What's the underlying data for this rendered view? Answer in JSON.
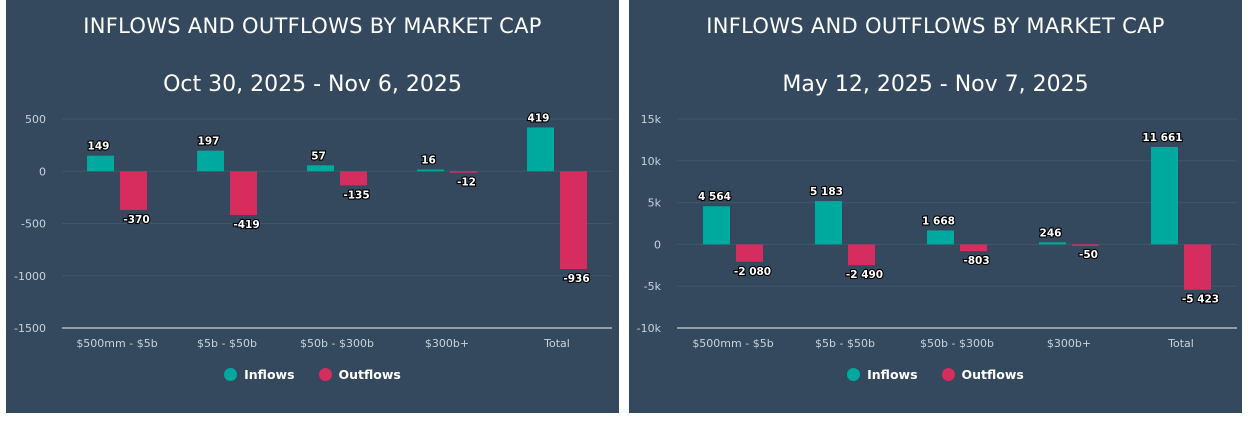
{
  "colors": {
    "inflows": "#00a99d",
    "outflows": "#d62c5e",
    "background": "#34495e"
  },
  "chart_data": [
    {
      "type": "bar",
      "title": "INFLOWS AND OUTFLOWS BY MARKET CAP",
      "subtitle": "Oct 30, 2025 - Nov 6, 2025",
      "categories": [
        "$500mm - $5b",
        "$5b - $50b",
        "$50b - $300b",
        "$300b+",
        "Total"
      ],
      "series": [
        {
          "name": "Inflows",
          "values": [
            149,
            197,
            57,
            16,
            419
          ],
          "labels": [
            "149",
            "197",
            "57",
            "16",
            "419"
          ]
        },
        {
          "name": "Outflows",
          "values": [
            -370,
            -419,
            -135,
            -12,
            -936
          ],
          "labels": [
            "-370",
            "-419",
            "-135",
            "-12",
            "-936"
          ]
        }
      ],
      "ylim": [
        -1500,
        500
      ],
      "yticks": [
        500,
        0,
        -500,
        -1000,
        -1500
      ],
      "ytick_labels": [
        "500",
        "0",
        "-500",
        "-1000",
        "-1500"
      ],
      "grid": true,
      "legend": "bottom"
    },
    {
      "type": "bar",
      "title": "INFLOWS AND OUTFLOWS BY MARKET CAP",
      "subtitle": "May 12, 2025 - Nov 7, 2025",
      "categories": [
        "$500mm - $5b",
        "$5b - $50b",
        "$50b - $300b",
        "$300b+",
        "Total"
      ],
      "series": [
        {
          "name": "Inflows",
          "values": [
            4564,
            5183,
            1668,
            246,
            11661
          ],
          "labels": [
            "4 564",
            "5 183",
            "1 668",
            "246",
            "11 661"
          ]
        },
        {
          "name": "Outflows",
          "values": [
            -2080,
            -2490,
            -803,
            -50,
            -5423
          ],
          "labels": [
            "-2 080",
            "-2 490",
            "-803",
            "-50",
            "-5 423"
          ]
        }
      ],
      "ylim": [
        -10000,
        15000
      ],
      "yticks": [
        15000,
        10000,
        5000,
        0,
        -5000,
        -10000
      ],
      "ytick_labels": [
        "15k",
        "10k",
        "5k",
        "0",
        "-5k",
        "-10k"
      ],
      "grid": true,
      "legend": "bottom"
    }
  ]
}
